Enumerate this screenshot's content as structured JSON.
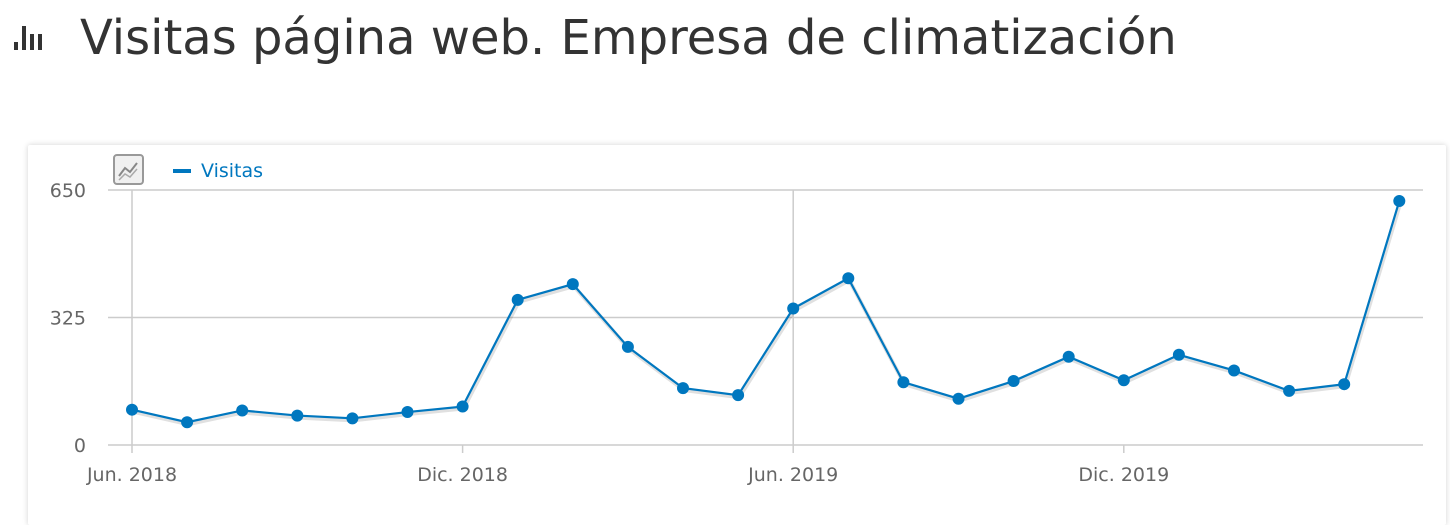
{
  "header": {
    "title": "Visitas página web. Empresa de climatización",
    "icon": "bar-chart-icon"
  },
  "toolbar": {
    "chart_type_icon": "line-chart-toggle-icon"
  },
  "colors": {
    "series": "#0077bf",
    "grid": "#cccccc",
    "text": "#666666",
    "title": "#333333"
  },
  "chart_data": {
    "type": "line",
    "title": "Visitas página web. Empresa de climatización",
    "xlabel": "",
    "ylabel": "",
    "ylim": [
      0,
      650
    ],
    "y_ticks": [
      0,
      325,
      650
    ],
    "x_ticks": [
      "Jun. 2018",
      "Dic. 2018",
      "Jun. 2019",
      "Dic. 2019"
    ],
    "x": [
      "2018-06",
      "2018-07",
      "2018-08",
      "2018-09",
      "2018-10",
      "2018-11",
      "2018-12",
      "2019-01",
      "2019-02",
      "2019-03",
      "2019-04",
      "2019-05",
      "2019-06",
      "2019-07",
      "2019-08",
      "2019-09",
      "2019-10",
      "2019-11",
      "2019-12",
      "2020-01",
      "2020-02",
      "2020-03",
      "2020-04",
      "2020-05"
    ],
    "series": [
      {
        "name": "Visitas",
        "values": [
          90,
          58,
          88,
          75,
          68,
          84,
          98,
          370,
          410,
          250,
          145,
          127,
          348,
          425,
          160,
          118,
          163,
          225,
          165,
          230,
          190,
          138,
          155,
          622
        ]
      }
    ],
    "grid": true,
    "legend": "top-left"
  }
}
